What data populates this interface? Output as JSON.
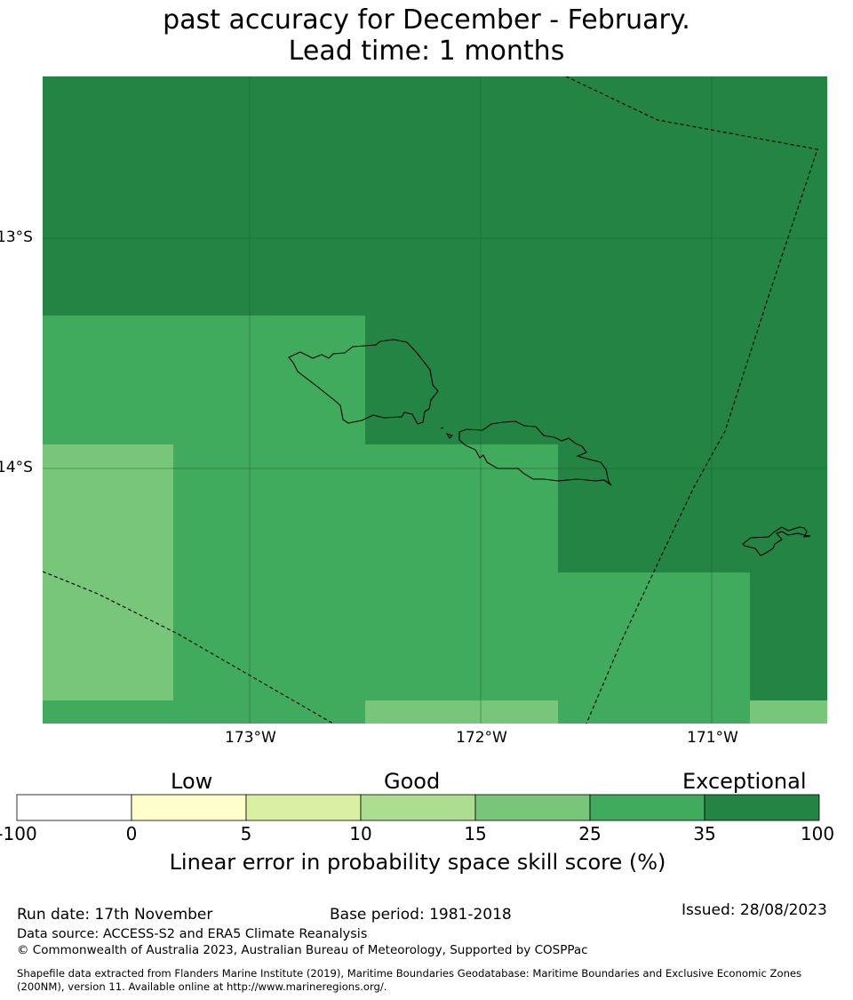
{
  "title": {
    "line2": "past accuracy for December - February.",
    "line3": "Lead time: 1 months"
  },
  "map": {
    "lat_labels": [
      "13°S",
      "14°S"
    ],
    "lon_labels": [
      "173°W",
      "172°W",
      "171°W"
    ],
    "region": "Samoa",
    "features": [
      "gridlines",
      "coastlines",
      "maritime-boundaries-dashed"
    ]
  },
  "colorbar": {
    "categories": [
      "Low",
      "Good",
      "Exceptional"
    ],
    "ticks": [
      "-100",
      "0",
      "5",
      "10",
      "15",
      "25",
      "35",
      "100"
    ],
    "colors": [
      "#ffffff",
      "#ffffcc",
      "#d9f0a3",
      "#addd8e",
      "#78c679",
      "#41ab5d",
      "#238443"
    ],
    "label": "Linear error in probability space skill score (%)"
  },
  "footer": {
    "run_date": "Run date: 17th November",
    "base_period": "Base period: 1981-2018",
    "issued": "Issued: 28/08/2023",
    "data_source": "Data source: ACCESS-S2 and ERA5 Climate Reanalysis",
    "copyright": "© Commonwealth of Australia 2023, Australian Bureau of Meteorology, Supported by COSPPac",
    "shapefile_line1": "Shapefile data extracted from Flanders Marine Institute (2019), Maritime Boundaries Geodatabase: Maritime Boundaries and Exclusive Economic Zones",
    "shapefile_line2": "(200NM), version 11. Available online at http://www.marineregions.org/."
  }
}
